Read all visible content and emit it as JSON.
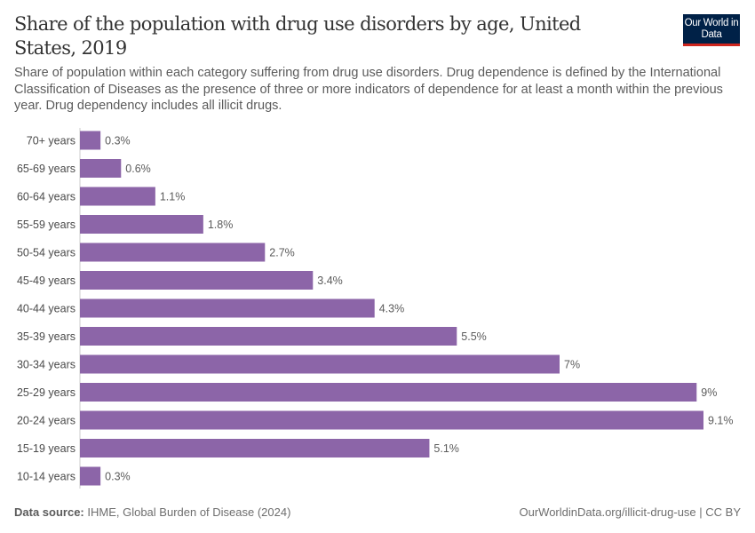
{
  "header": {
    "title": "Share of the population with drug use disorders by age, United States, 2019",
    "subtitle": "Share of population within each category suffering from drug use disorders. Drug dependence is defined by the International Classification of Diseases as the presence of three or more indicators of dependence for at least a month within the previous year. Drug dependency includes all illicit drugs.",
    "logo_text": "Our World in Data"
  },
  "footer": {
    "source_label": "Data source:",
    "source": "IHME, Global Burden of Disease (2024)",
    "url": "OurWorldinData.org/illicit-drug-use | CC BY"
  },
  "chart_data": {
    "type": "bar",
    "orientation": "horizontal",
    "categories": [
      "70+ years",
      "65-69 years",
      "60-64 years",
      "55-59 years",
      "50-54 years",
      "45-49 years",
      "40-44 years",
      "35-39 years",
      "30-34 years",
      "25-29 years",
      "20-24 years",
      "15-19 years",
      "10-14 years"
    ],
    "values": [
      0.3,
      0.6,
      1.1,
      1.8,
      2.7,
      3.4,
      4.3,
      5.5,
      7,
      9,
      9.1,
      5.1,
      0.3
    ],
    "labels": [
      "0.3%",
      "0.6%",
      "1.1%",
      "1.8%",
      "2.7%",
      "3.4%",
      "4.3%",
      "5.5%",
      "7%",
      "9%",
      "9.1%",
      "5.1%",
      "0.3%"
    ],
    "unit": "%",
    "xlim": [
      0,
      9.1
    ],
    "grid": false,
    "bar_color": "#8c65a8"
  }
}
